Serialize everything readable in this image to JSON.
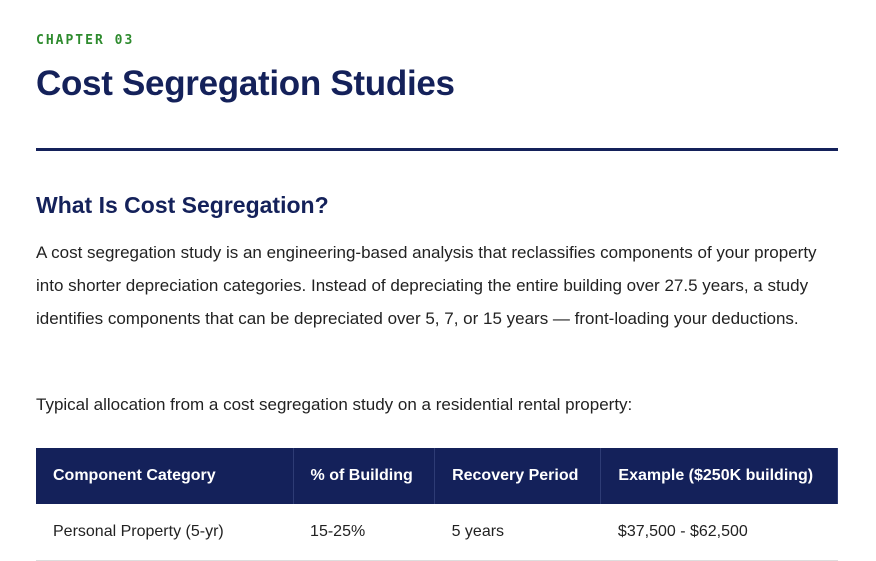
{
  "header": {
    "eyebrow": "CHAPTER 03",
    "title": "Cost Segregation Studies"
  },
  "section": {
    "heading": "What Is Cost Segregation?",
    "paragraphs": [
      "A cost segregation study is an engineering-based analysis that reclassifies components of your property into shorter depreciation categories. Instead of depreciating the entire building over 27.5 years, a study identifies components that can be depreciated over 5, 7, or 15 years — front-loading your deductions.",
      "Typical allocation from a cost segregation study on a residential rental property:"
    ]
  },
  "table": {
    "columns": [
      "Component Category",
      "% of Building",
      "Recovery Period",
      "Example ($250K building)"
    ],
    "rows": [
      [
        "Personal Property (5-yr)",
        "15-25%",
        "5 years",
        "$37,500 - $62,500"
      ]
    ]
  }
}
